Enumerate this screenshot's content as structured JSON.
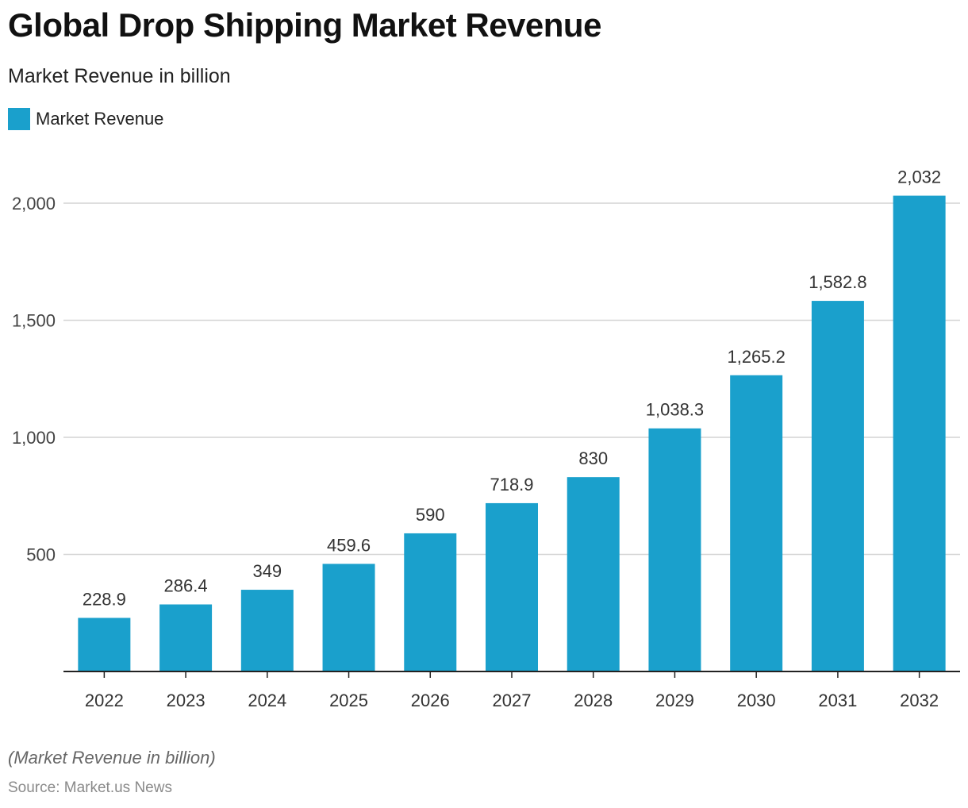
{
  "chart_data": {
    "type": "bar",
    "title": "Global Drop Shipping Market Revenue",
    "subtitle": "Market Revenue in billion",
    "categories": [
      "2022",
      "2023",
      "2024",
      "2025",
      "2026",
      "2027",
      "2028",
      "2029",
      "2030",
      "2031",
      "2032"
    ],
    "series": [
      {
        "name": "Market Revenue",
        "values": [
          228.9,
          286.4,
          349,
          459.6,
          590,
          718.9,
          830,
          1038.3,
          1265.2,
          1582.8,
          2032
        ],
        "labels": [
          "228.9",
          "286.4",
          "349",
          "459.6",
          "590",
          "718.9",
          "830",
          "1,038.3",
          "1,265.2",
          "1,582.8",
          "2,032"
        ]
      }
    ],
    "y_ticks": [
      500,
      1000,
      1500,
      2000
    ],
    "y_tick_labels": [
      "500",
      "1,000",
      "1,500",
      "2,000"
    ],
    "ylim": [
      0,
      2250
    ],
    "grid": true,
    "legend_position": "top-left",
    "bar_color": "#1aa0cc",
    "note": "(Market Revenue in billion)",
    "source": "Source: Market.us News"
  }
}
